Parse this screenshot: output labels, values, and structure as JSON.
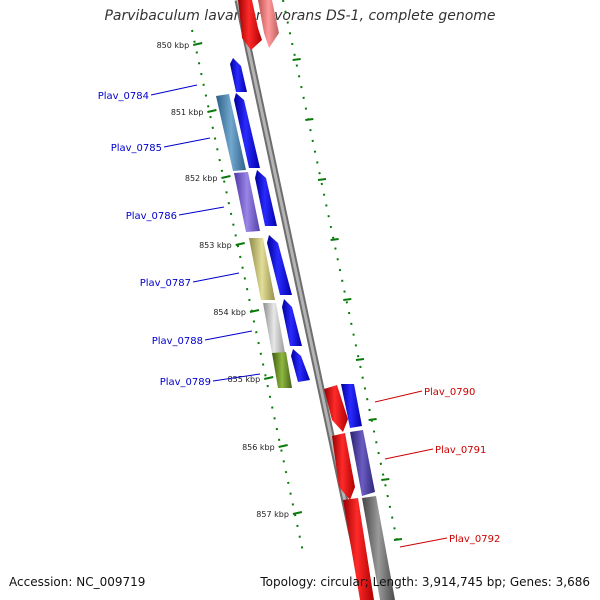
{
  "title": "Parvibaculum lavamentivorans DS-1, complete genome",
  "accession": "Accession: NC_009719",
  "summary": "Topology: circular; Length: 3,914,745 bp; Genes: 3,686",
  "colors": {
    "forward_label": "#0000cc",
    "reverse_label": "#cc0000",
    "ticks": "#0a7a0a",
    "backbone": "#8a8a8a"
  },
  "kbp_ticks": [
    "850 kbp",
    "851 kbp",
    "852 kbp",
    "853 kbp",
    "854 kbp",
    "855 kbp",
    "856 kbp",
    "857 kbp"
  ],
  "genes": [
    {
      "id": "Plav_0784",
      "strand": "forward",
      "color": "#4a86b0"
    },
    {
      "id": "Plav_0785",
      "strand": "forward",
      "color": "#4a86b0"
    },
    {
      "id": "Plav_0786",
      "strand": "forward",
      "color": "#7a62c9"
    },
    {
      "id": "Plav_0787",
      "strand": "forward",
      "color": "#bdb871"
    },
    {
      "id": "Plav_0788",
      "strand": "forward",
      "color": "#c4c4c4"
    },
    {
      "id": "Plav_0789",
      "strand": "forward",
      "color": "#6b8f26"
    },
    {
      "id": "Plav_0790",
      "strand": "reverse",
      "color": "#ff0000"
    },
    {
      "id": "Plav_0791",
      "strand": "reverse",
      "color": "#4b3f9a"
    },
    {
      "id": "Plav_0792",
      "strand": "reverse",
      "color": "#777777"
    }
  ]
}
